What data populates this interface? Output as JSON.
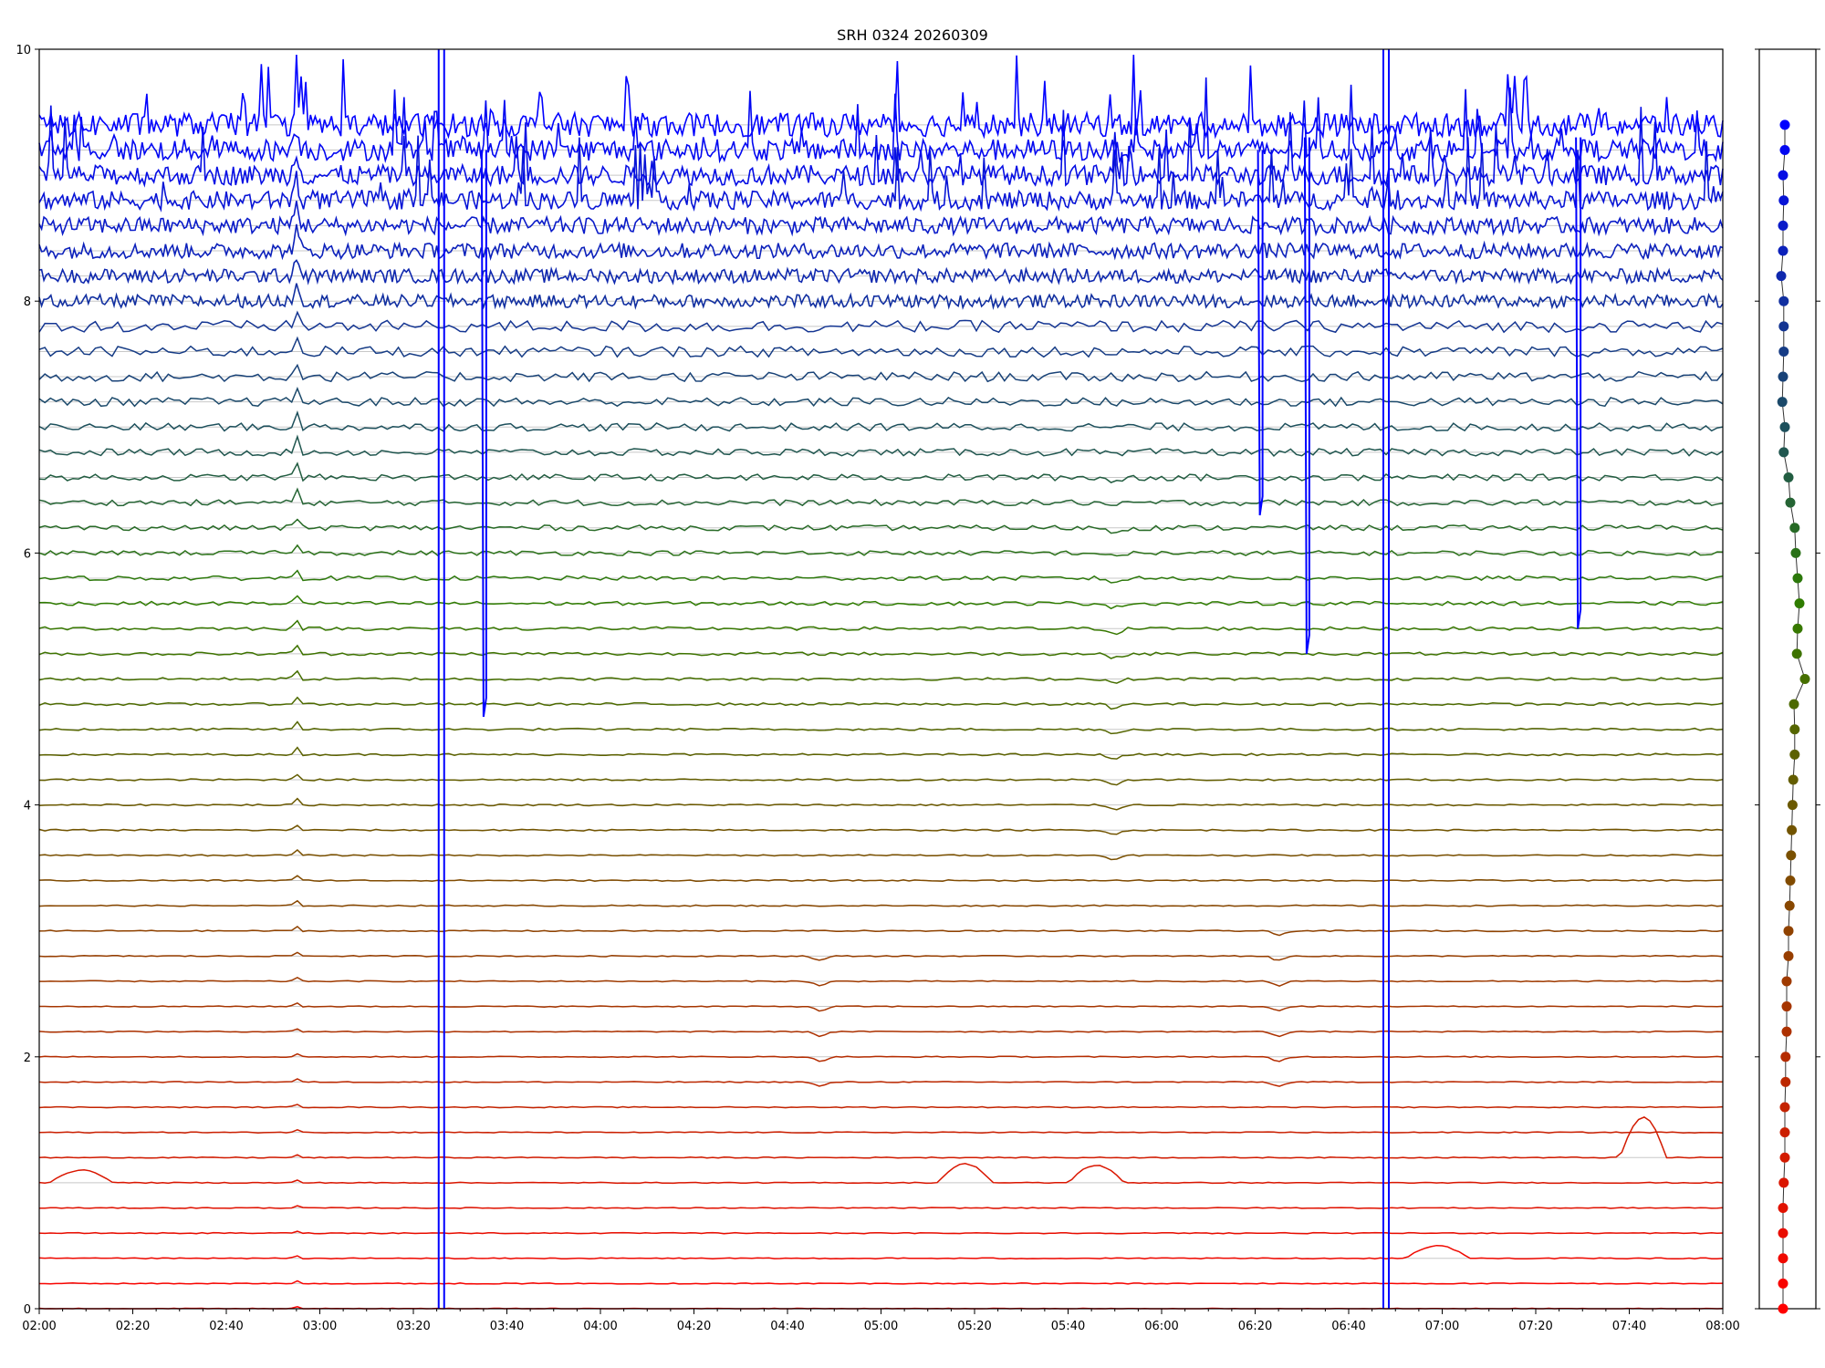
{
  "chart_data": [
    {
      "type": "line",
      "title": "SRH 0324 20260309",
      "xlabel": "",
      "ylabel": "",
      "xlim": [
        "02:00",
        "08:00"
      ],
      "ylim": [
        0,
        10
      ],
      "x_tick_labels": [
        "02:00",
        "02:20",
        "02:40",
        "03:00",
        "03:20",
        "03:40",
        "04:00",
        "04:20",
        "04:40",
        "05:00",
        "05:20",
        "05:40",
        "06:00",
        "06:20",
        "06:40",
        "07:00",
        "07:20",
        "07:40",
        "08:00"
      ],
      "y_tick_labels": [
        "0",
        "2",
        "4",
        "6",
        "8",
        "10"
      ],
      "grid": "horizontal lines at each trace baseline",
      "legend": "none",
      "n_traces": 48,
      "trace_baselines": [
        0.0,
        0.2,
        0.4,
        0.6,
        0.8,
        1.0,
        1.2,
        1.4,
        1.6,
        1.8,
        2.0,
        2.2,
        2.4,
        2.6,
        2.8,
        3.0,
        3.2,
        3.4,
        3.6,
        3.8,
        4.0,
        4.2,
        4.4,
        4.6,
        4.8,
        5.0,
        5.2,
        5.4,
        5.6,
        5.8,
        6.0,
        6.2,
        6.4,
        6.6,
        6.8,
        7.0,
        7.2,
        7.4,
        7.6,
        7.8,
        8.0,
        8.2,
        8.4,
        8.6,
        8.8,
        9.0,
        9.2,
        9.4
      ],
      "trace_colors": {
        "bottom": "#ff0000",
        "middle": "#2e7d00",
        "top": "#0000ff"
      },
      "features": [
        {
          "type": "spike",
          "x": "02:55",
          "traces": "all",
          "note": "small spike on every trace, larger on upper traces"
        },
        {
          "type": "dip",
          "x": "05:50",
          "y_range": [
            3.5,
            6.8
          ]
        },
        {
          "type": "dip",
          "x": "06:25",
          "y_range": [
            1.8,
            3.0
          ]
        },
        {
          "type": "dip",
          "x": "04:47",
          "y_range": [
            1.8,
            2.9
          ]
        },
        {
          "type": "bump",
          "x_range": [
            "07:38",
            "07:48"
          ],
          "baseline": 1.2,
          "peak": 1.52
        },
        {
          "type": "bump",
          "x_range": [
            "05:12",
            "05:24"
          ],
          "baseline": 1.0,
          "peak": 1.15
        },
        {
          "type": "bump",
          "x_range": [
            "05:40",
            "05:52"
          ],
          "baseline": 1.0,
          "peak": 1.14
        },
        {
          "type": "bump",
          "x_range": [
            "02:02",
            "02:16"
          ],
          "baseline": 1.0,
          "peak": 1.1
        },
        {
          "type": "bump",
          "x_range": [
            "06:52",
            "07:06"
          ],
          "baseline": 0.4,
          "peak": 0.5
        },
        {
          "type": "vertical_glitch",
          "x": "03:26",
          "y_range": [
            0,
            10
          ]
        },
        {
          "type": "vertical_glitch",
          "x": "06:48",
          "y_range": [
            0,
            10
          ]
        },
        {
          "type": "drop",
          "x": "03:35",
          "from": 9.2,
          "to": 4.7
        },
        {
          "type": "drop",
          "x": "06:21",
          "from": 9.2,
          "to": 6.3
        },
        {
          "type": "drop",
          "x": "06:31",
          "from": 9.3,
          "to": 5.2
        },
        {
          "type": "drop",
          "x": "07:29",
          "from": 9.3,
          "to": 5.4
        }
      ]
    },
    {
      "type": "scatter",
      "title": "",
      "xlabel": "",
      "ylabel": "",
      "ylim": [
        0,
        10
      ],
      "legend": "none",
      "y": [
        0.0,
        0.2,
        0.4,
        0.6,
        0.8,
        1.0,
        1.2,
        1.4,
        1.6,
        1.8,
        2.0,
        2.2,
        2.4,
        2.6,
        2.8,
        3.0,
        3.2,
        3.4,
        3.6,
        3.8,
        4.0,
        4.2,
        4.4,
        4.6,
        4.8,
        5.0,
        5.2,
        5.4,
        5.6,
        5.8,
        6.0,
        6.2,
        6.4,
        6.6,
        6.8,
        7.0,
        7.2,
        7.4,
        7.6,
        7.8,
        8.0,
        8.2,
        8.4,
        8.6,
        8.8,
        9.0,
        9.2,
        9.4
      ],
      "x": [
        -0.1,
        -0.1,
        -0.1,
        -0.1,
        -0.1,
        -0.08,
        -0.05,
        -0.05,
        -0.05,
        -0.03,
        -0.03,
        0.0,
        0.0,
        0.0,
        0.05,
        0.05,
        0.08,
        0.1,
        0.12,
        0.14,
        0.16,
        0.18,
        0.22,
        0.22,
        0.2,
        0.5,
        0.28,
        0.3,
        0.35,
        0.3,
        0.25,
        0.22,
        0.1,
        0.05,
        -0.08,
        -0.05,
        -0.12,
        -0.1,
        -0.08,
        -0.08,
        -0.08,
        -0.15,
        -0.1,
        -0.1,
        -0.08,
        -0.1,
        -0.05,
        -0.05
      ]
    }
  ]
}
